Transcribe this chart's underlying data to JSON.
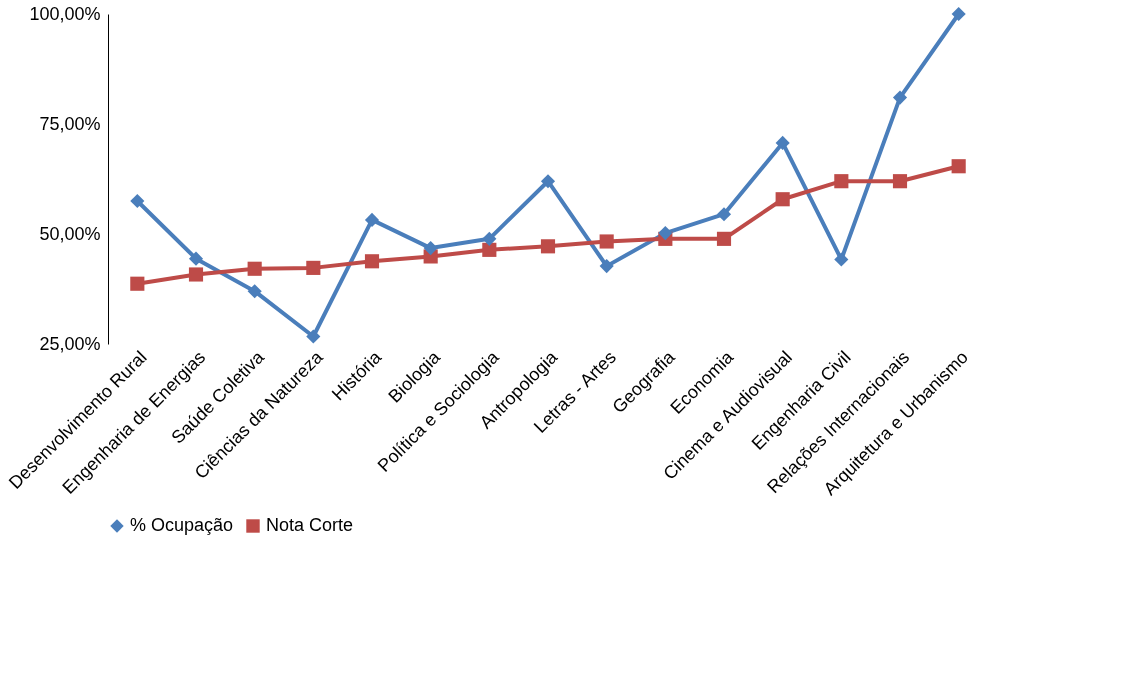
{
  "chart_data": {
    "type": "line",
    "categories": [
      "Desenvolvimento Rural",
      "Engenharia de Energias",
      "Saúde Coletiva",
      "Ciências da Natureza",
      "História",
      "Biologia",
      "Política e Sociologia",
      "Antropologia",
      "Letras - Artes",
      "Geografia",
      "Economia",
      "Cinema e Audiovisual",
      "Engenharia Civil",
      "Relações Internacionais",
      "Arquitetura e Urbanismo"
    ],
    "series": [
      {
        "name": "% Ocupação",
        "color": "#4a7ebb",
        "marker": "diamond",
        "values": [
          57.5,
          44.4,
          37.0,
          26.7,
          53.2,
          46.8,
          48.9,
          62.0,
          42.7,
          50.2,
          54.5,
          70.7,
          44.2,
          81.0,
          100
        ]
      },
      {
        "name": "Nota Corte",
        "color": "#be4b48",
        "marker": "square",
        "values": [
          38.7,
          40.8,
          42.1,
          42.3,
          43.8,
          44.9,
          46.4,
          47.2,
          48.3,
          48.9,
          48.9,
          57.9,
          62.0,
          62.0,
          65.4
        ]
      }
    ],
    "ylim": [
      25,
      100
    ],
    "yticks": [
      {
        "value": 25,
        "label": "25,00%"
      },
      {
        "value": 50,
        "label": "50,00%"
      },
      {
        "value": 75,
        "label": "75,00%"
      },
      {
        "value": 100,
        "label": "100,00%"
      }
    ],
    "grid": false,
    "legend": "bottom",
    "line_style": "solid"
  }
}
